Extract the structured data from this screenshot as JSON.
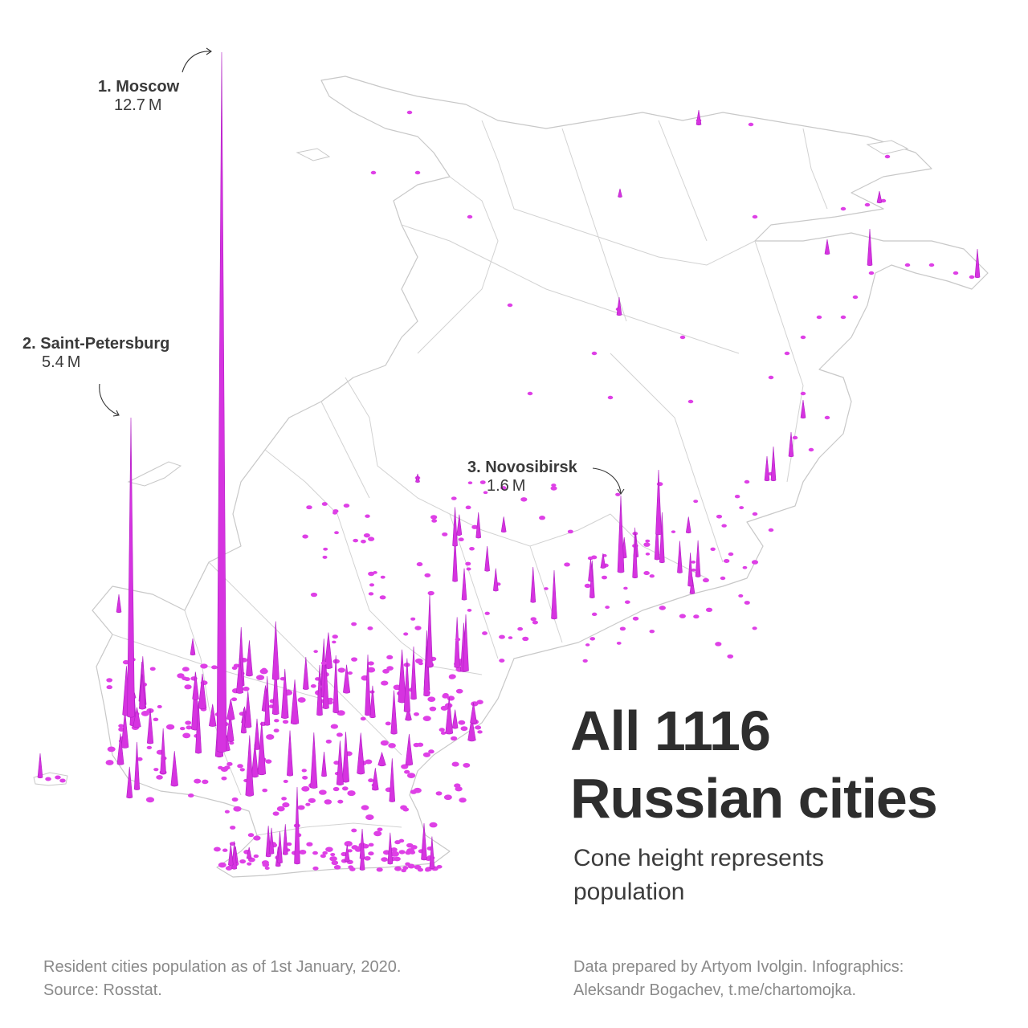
{
  "title_line1": "All 1116",
  "title_line2": "Russian cities",
  "subtitle_line1": "Cone height represents",
  "subtitle_line2": "population",
  "annotations": [
    {
      "name": "1. Moscow",
      "population": "12.7 M",
      "population_millions": 12.7
    },
    {
      "name": "2. Saint-Petersburg",
      "population": "5.4 M",
      "population_millions": 5.4
    },
    {
      "name": "3. Novosibirsk",
      "population": "1.6 M",
      "population_millions": 1.6
    }
  ],
  "source_line1": "Resident cities population as of 1st January, 2020.",
  "source_line2": "Source: Rosstat.",
  "credit_line1": "Data prepared by Artyom Ivolgin. Infographics:",
  "credit_line2": "Aleksandr Bogachev, t.me/chartomojka.",
  "colors": {
    "cone": "#d633e0",
    "region_border": "#c8c8c8",
    "text": "#333333",
    "footnote": "#8a8a8a"
  }
}
